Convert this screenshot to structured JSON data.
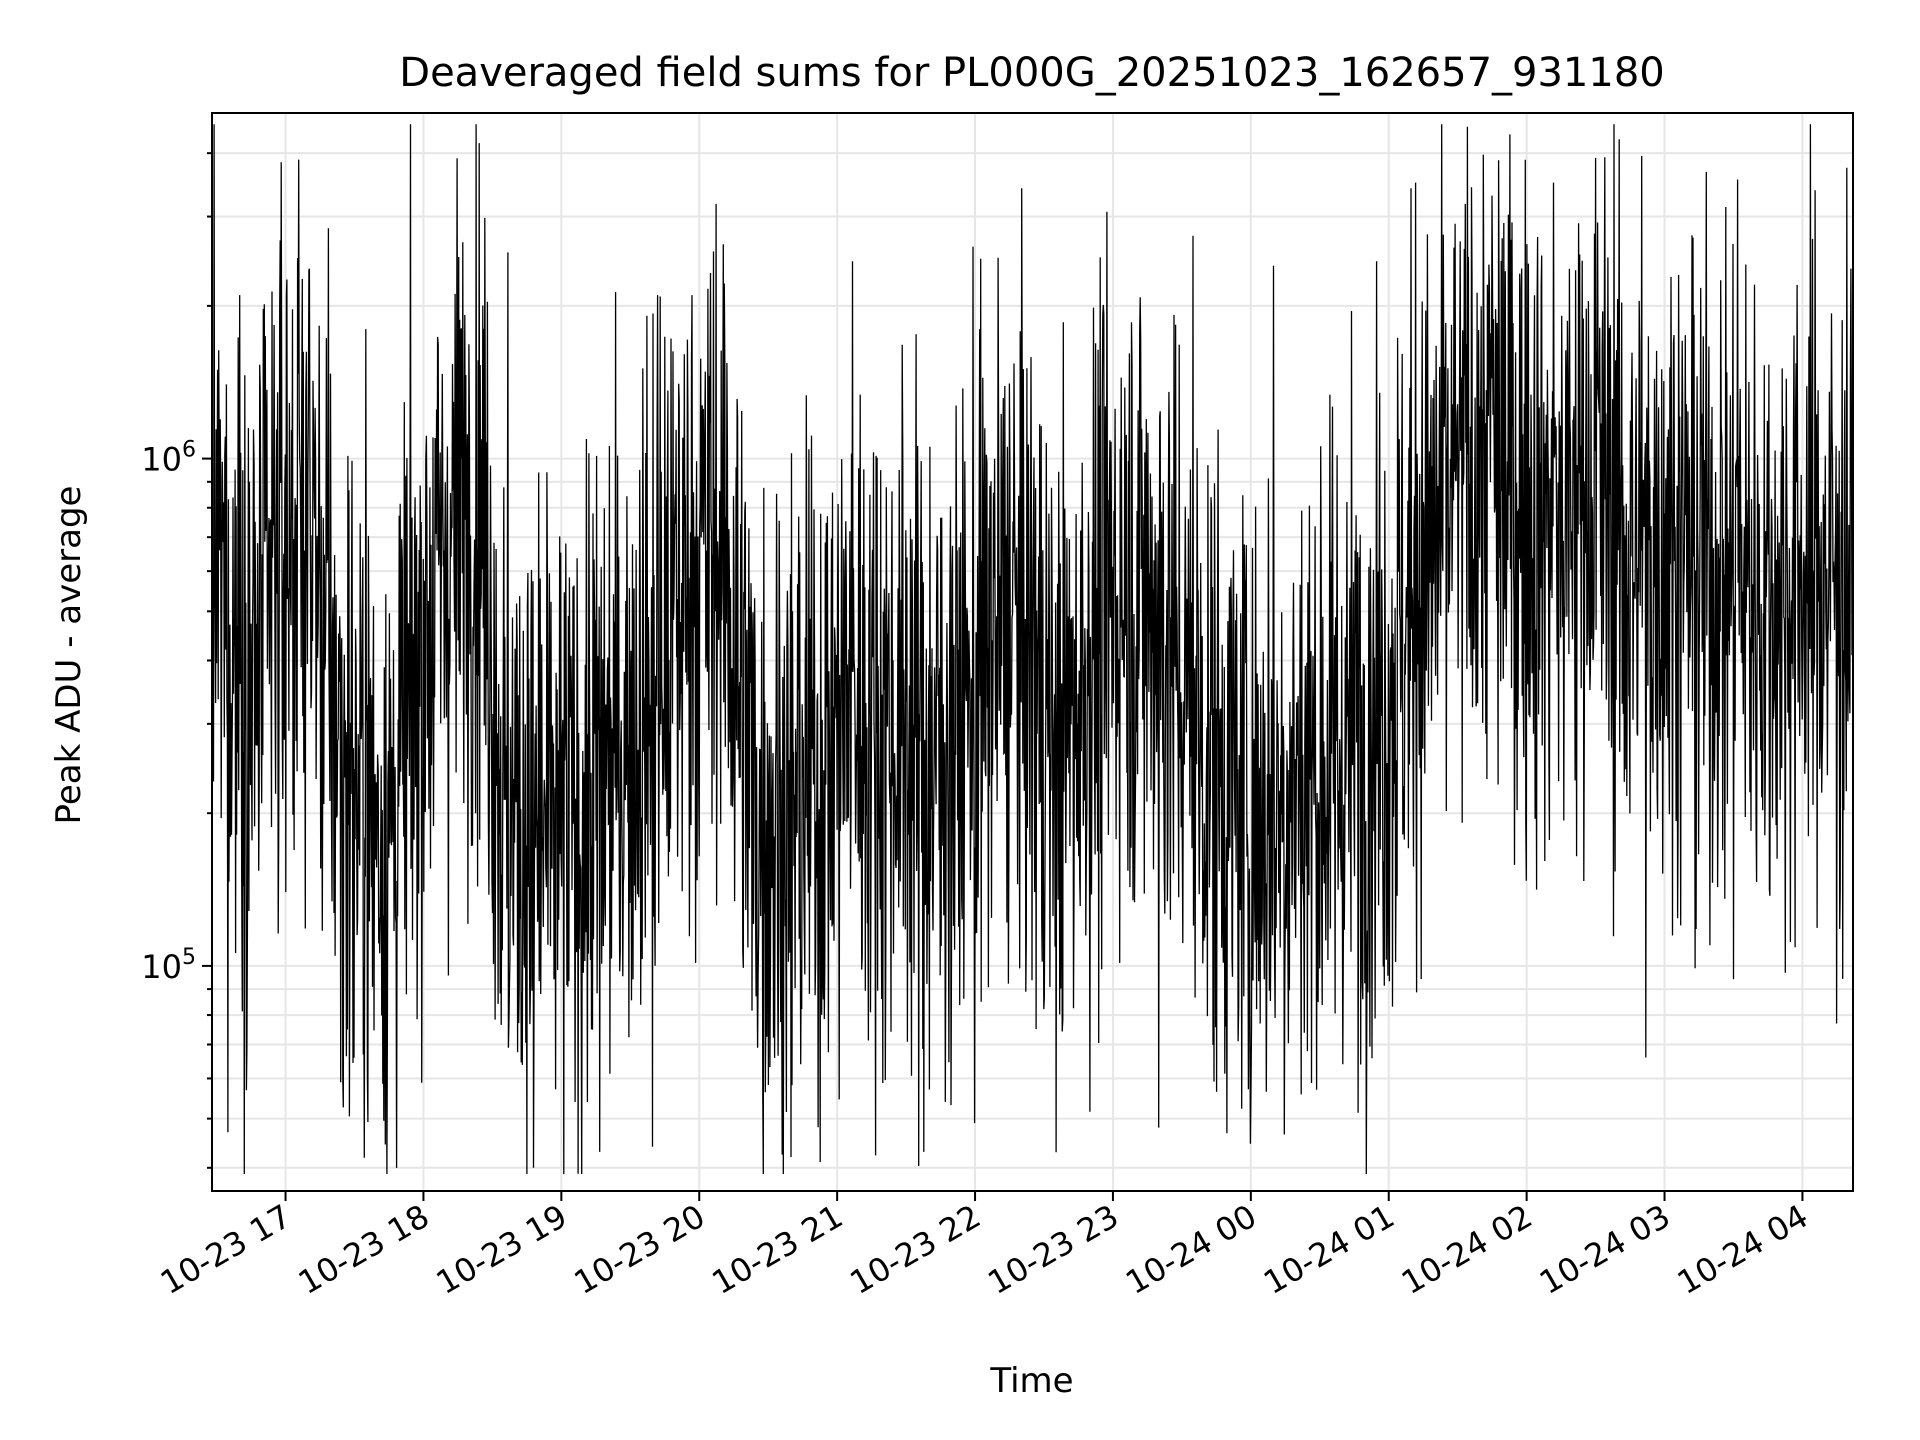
{
  "chart_data": {
    "type": "line",
    "title": "Deaveraged field sums for PL000G_20251023_162657_931180",
    "xlabel": "Time",
    "ylabel": "Peak ADU - average",
    "yscale": "log",
    "ylim": [
      36000,
      4800000
    ],
    "xlim": [
      "2025-10-23 16:28",
      "2025-10-24 04:22"
    ],
    "x_ticks": [
      "10-23 17",
      "10-23 18",
      "10-23 19",
      "10-23 20",
      "10-23 21",
      "10-23 22",
      "10-23 23",
      "10-24 00",
      "10-24 01",
      "10-24 02",
      "10-24 03",
      "10-24 04"
    ],
    "y_ticks": [
      {
        "base": "10",
        "exp": "5",
        "value": 100000
      },
      {
        "base": "10",
        "exp": "6",
        "value": 1000000
      }
    ],
    "grid": true,
    "line_color": "#000000",
    "series": [
      {
        "x": [
          "2025-10-23 16:30",
          "2025-10-23 16:45",
          "2025-10-23 17:00",
          "2025-10-23 17:10",
          "2025-10-23 17:20",
          "2025-10-23 17:30",
          "2025-10-23 17:45",
          "2025-10-23 18:00",
          "2025-10-23 18:15",
          "2025-10-23 18:25",
          "2025-10-23 18:35",
          "2025-10-23 18:50",
          "2025-10-23 19:00",
          "2025-10-23 19:15",
          "2025-10-23 19:30",
          "2025-10-23 19:45",
          "2025-10-23 19:55",
          "2025-10-23 20:10",
          "2025-10-23 20:25",
          "2025-10-23 20:40",
          "2025-10-23 20:55",
          "2025-10-23 21:05",
          "2025-10-23 21:15",
          "2025-10-23 21:30",
          "2025-10-23 21:45",
          "2025-10-23 22:00",
          "2025-10-23 22:15",
          "2025-10-23 22:25",
          "2025-10-23 22:35",
          "2025-10-23 22:50",
          "2025-10-23 23:05",
          "2025-10-23 23:20",
          "2025-10-23 23:35",
          "2025-10-23 23:50",
          "2025-10-24 00:05",
          "2025-10-24 00:20",
          "2025-10-24 00:35",
          "2025-10-24 00:50",
          "2025-10-24 01:00",
          "2025-10-24 01:15",
          "2025-10-24 01:30",
          "2025-10-24 01:45",
          "2025-10-24 02:00",
          "2025-10-24 02:15",
          "2025-10-24 02:30",
          "2025-10-24 02:45",
          "2025-10-24 03:00",
          "2025-10-24 03:15",
          "2025-10-24 03:30",
          "2025-10-24 03:45",
          "2025-10-24 04:00",
          "2025-10-24 04:20"
        ],
        "y": [
          600000,
          350000,
          700000,
          800000,
          350000,
          220000,
          180000,
          450000,
          800000,
          900000,
          200000,
          180000,
          180000,
          220000,
          300000,
          400000,
          600000,
          700000,
          200000,
          200000,
          250000,
          350000,
          300000,
          300000,
          250000,
          350000,
          500000,
          400000,
          250000,
          400000,
          600000,
          500000,
          300000,
          220000,
          200000,
          230000,
          250000,
          300000,
          350000,
          600000,
          900000,
          1000000,
          800000,
          700000,
          1000000,
          600000,
          700000,
          600000,
          600000,
          500000,
          600000,
          600000
        ],
        "spikes_high": [
          [
            "2025-10-23 16:40",
            2100000
          ],
          [
            "2025-10-23 17:10",
            2350000
          ],
          [
            "2025-10-23 17:35",
            1800000
          ],
          [
            "2025-10-23 18:37",
            2550000
          ],
          [
            "2025-10-23 19:42",
            2100000
          ],
          [
            "2025-10-23 19:57",
            2100000
          ],
          [
            "2025-10-23 21:07",
            2450000
          ],
          [
            "2025-10-23 22:02",
            1800000
          ],
          [
            "2025-10-23 23:35",
            2750000
          ],
          [
            "2025-10-24 00:10",
            2400000
          ],
          [
            "2025-10-24 00:55",
            2450000
          ],
          [
            "2025-10-24 01:12",
            3500000
          ],
          [
            "2025-10-24 01:45",
            3300000
          ],
          [
            "2025-10-24 02:12",
            3500000
          ],
          [
            "2025-10-24 02:50",
            3950000
          ],
          [
            "2025-10-24 03:32",
            3550000
          ]
        ],
        "spikes_low": [
          [
            "2025-10-23 16:35",
            47000
          ],
          [
            "2025-10-23 17:25",
            60000
          ],
          [
            "2025-10-23 18:48",
            40000
          ],
          [
            "2025-10-23 19:17",
            43000
          ],
          [
            "2025-10-23 19:40",
            44000
          ],
          [
            "2025-10-23 20:40",
            42000
          ],
          [
            "2025-10-23 21:38",
            43000
          ],
          [
            "2025-10-23 22:00",
            49000
          ],
          [
            "2025-10-23 23:20",
            48000
          ],
          [
            "2025-10-24 00:00",
            58000
          ],
          [
            "2025-10-24 00:29",
            57000
          ],
          [
            "2025-10-24 02:52",
            66000
          ],
          [
            "2025-10-24 04:15",
            77000
          ]
        ]
      }
    ]
  }
}
